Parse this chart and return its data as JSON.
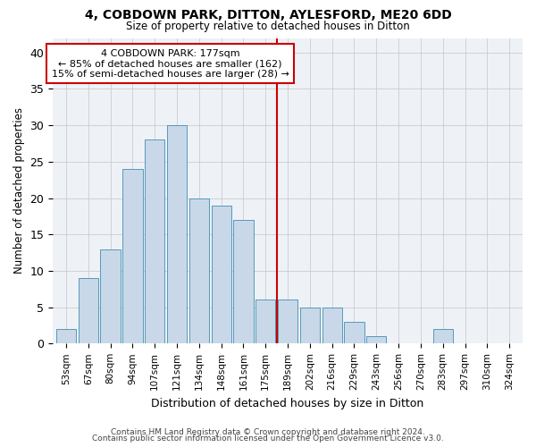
{
  "title1": "4, COBDOWN PARK, DITTON, AYLESFORD, ME20 6DD",
  "title2": "Size of property relative to detached houses in Ditton",
  "xlabel": "Distribution of detached houses by size in Ditton",
  "ylabel": "Number of detached properties",
  "bin_labels": [
    "53sqm",
    "67sqm",
    "80sqm",
    "94sqm",
    "107sqm",
    "121sqm",
    "134sqm",
    "148sqm",
    "161sqm",
    "175sqm",
    "189sqm",
    "202sqm",
    "216sqm",
    "229sqm",
    "243sqm",
    "256sqm",
    "270sqm",
    "283sqm",
    "297sqm",
    "310sqm",
    "324sqm"
  ],
  "bar_heights": [
    2,
    9,
    13,
    24,
    28,
    30,
    20,
    19,
    17,
    6,
    6,
    5,
    5,
    3,
    1,
    0,
    0,
    2,
    0,
    0,
    0
  ],
  "bar_color": "#c8d8e8",
  "bar_edge_color": "#5599bb",
  "vline_x": 9.5,
  "vline_color": "#cc0000",
  "annotation_text": "4 COBDOWN PARK: 177sqm\n← 85% of detached houses are smaller (162)\n15% of semi-detached houses are larger (28) →",
  "annotation_box_color": "#ffffff",
  "annotation_box_edge": "#cc0000",
  "ylim": [
    0,
    42
  ],
  "yticks": [
    0,
    5,
    10,
    15,
    20,
    25,
    30,
    35,
    40
  ],
  "grid_color": "#cccccc",
  "bg_color": "#eef2f7",
  "footer1": "Contains HM Land Registry data © Crown copyright and database right 2024.",
  "footer2": "Contains public sector information licensed under the Open Government Licence v3.0."
}
